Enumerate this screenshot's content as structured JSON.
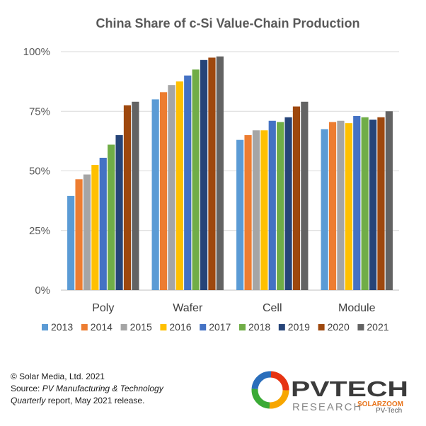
{
  "chart_data": {
    "type": "bar",
    "title": "China Share of c-Si Value-Chain Production",
    "xlabel": "",
    "ylabel": "",
    "categories": [
      "Poly",
      "Wafer",
      "Cell",
      "Module"
    ],
    "yticks": [
      "0%",
      "25%",
      "50%",
      "75%",
      "100%"
    ],
    "ylim": [
      0,
      100
    ],
    "grid": true,
    "legend_position": "bottom",
    "series": [
      {
        "name": "2013",
        "color": "#5b9bd5",
        "values": [
          39.5,
          80,
          63,
          67.5
        ]
      },
      {
        "name": "2014",
        "color": "#ed7d31",
        "values": [
          46.5,
          83,
          65,
          70.5
        ]
      },
      {
        "name": "2015",
        "color": "#a5a5a5",
        "values": [
          48.5,
          86,
          67,
          71
        ]
      },
      {
        "name": "2016",
        "color": "#ffc000",
        "values": [
          52.5,
          87.5,
          67,
          70
        ]
      },
      {
        "name": "2017",
        "color": "#4472c4",
        "values": [
          55.5,
          90,
          71,
          73
        ]
      },
      {
        "name": "2018",
        "color": "#70ad47",
        "values": [
          61,
          92.5,
          70.5,
          72.5
        ]
      },
      {
        "name": "2019",
        "color": "#264478",
        "values": [
          65,
          96.5,
          72.5,
          71.5
        ]
      },
      {
        "name": "2020",
        "color": "#9e480e",
        "values": [
          77.5,
          97.5,
          77,
          72.5
        ]
      },
      {
        "name": "2021",
        "color": "#636363",
        "values": [
          79,
          98,
          79,
          75
        ]
      }
    ]
  },
  "footer": {
    "copyright": "© Solar Media, Ltd. 2021",
    "source_prefix": "Source: ",
    "source_italic": "PV Manufacturing & Technology",
    "source_italic2": "Quarterly",
    "source_suffix": " report, May 2021 release."
  },
  "logo": {
    "text_main": "PVTECH",
    "text_sub": "RESEARCH",
    "watermark": "SOLARZOOM",
    "watermark2": "PV-Tech"
  }
}
